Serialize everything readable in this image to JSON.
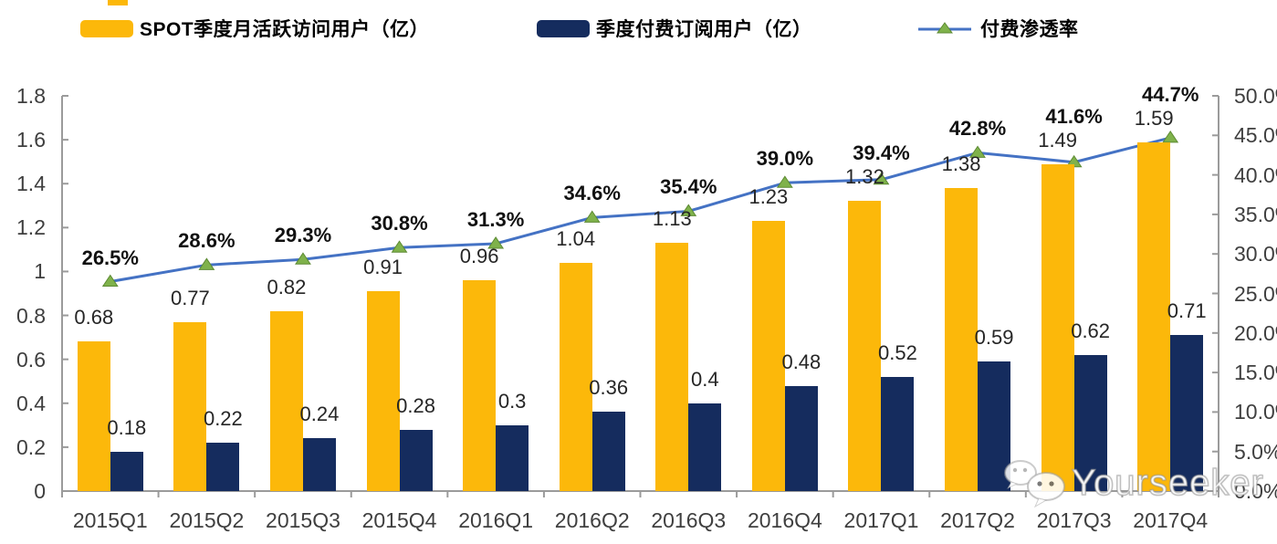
{
  "legend": {
    "items": [
      {
        "label": "SPOT季度月活跃访问用户（亿）",
        "swatch": "bar",
        "color": "#FCB80A"
      },
      {
        "label": "季度付费订阅用户（亿）",
        "swatch": "bar",
        "color": "#152C5E"
      },
      {
        "label": "付费渗透率",
        "swatch": "line",
        "color": "#4472C4",
        "marker_color": "#7FB24B"
      }
    ]
  },
  "watermark": {
    "text": "Yourseeker",
    "icon": "wechat-icon"
  },
  "chart_data": {
    "type": "bar",
    "subtype": "grouped-bars-plus-line-dual-axis",
    "title": "",
    "categories": [
      "2015Q1",
      "2015Q2",
      "2015Q3",
      "2015Q4",
      "2016Q1",
      "2016Q2",
      "2016Q3",
      "2016Q4",
      "2017Q1",
      "2017Q2",
      "2017Q3",
      "2017Q4"
    ],
    "series": [
      {
        "name": "SPOT季度月活跃访问用户（亿）",
        "type": "bar",
        "axis": "left",
        "color": "#FCB80A",
        "values": [
          0.68,
          0.77,
          0.82,
          0.91,
          0.96,
          1.04,
          1.13,
          1.23,
          1.32,
          1.38,
          1.49,
          1.59
        ],
        "labels": [
          "0.68",
          "0.77",
          "0.82",
          "0.91",
          "0.96",
          "1.04",
          "1.13",
          "1.23",
          "1.32",
          "1.38",
          "1.49",
          "1.59"
        ]
      },
      {
        "name": "季度付费订阅用户（亿）",
        "type": "bar",
        "axis": "left",
        "color": "#152C5E",
        "values": [
          0.18,
          0.22,
          0.24,
          0.28,
          0.3,
          0.36,
          0.4,
          0.48,
          0.52,
          0.59,
          0.62,
          0.71
        ],
        "labels": [
          "0.18",
          "0.22",
          "0.24",
          "0.28",
          "0.3",
          "0.36",
          "0.4",
          "0.48",
          "0.52",
          "0.59",
          "0.62",
          "0.71"
        ]
      },
      {
        "name": "付费渗透率",
        "type": "line",
        "axis": "right",
        "color": "#4472C4",
        "marker": "triangle-up",
        "marker_color": "#7FB24B",
        "values": [
          26.5,
          28.6,
          29.3,
          30.8,
          31.3,
          34.6,
          35.4,
          39.0,
          39.4,
          42.8,
          41.6,
          44.7
        ],
        "labels": [
          "26.5%",
          "28.6%",
          "29.3%",
          "30.8%",
          "31.3%",
          "34.6%",
          "35.4%",
          "39.0%",
          "39.4%",
          "42.8%",
          "41.6%",
          "44.7%"
        ]
      }
    ],
    "left_axis": {
      "min": 0,
      "max": 1.8,
      "step": 0.2,
      "tick_labels_top_to_bottom": [
        "1.8",
        "1.6",
        "1.4",
        "1.2",
        "1",
        "0.8",
        "0.6",
        "0.4",
        "0.2",
        "0"
      ]
    },
    "right_axis": {
      "min": 0,
      "max": 50,
      "step": 5,
      "unit": "%",
      "tick_labels_top_to_bottom": [
        "50.0%",
        "45.0%",
        "40.0%",
        "35.0%",
        "30.0%",
        "25.0%",
        "20.0%",
        "15.0%",
        "10.0%",
        "5.0%",
        "0.0%"
      ]
    },
    "grid": false,
    "legend_position": "top",
    "axis_color": "#9B9B9B"
  }
}
